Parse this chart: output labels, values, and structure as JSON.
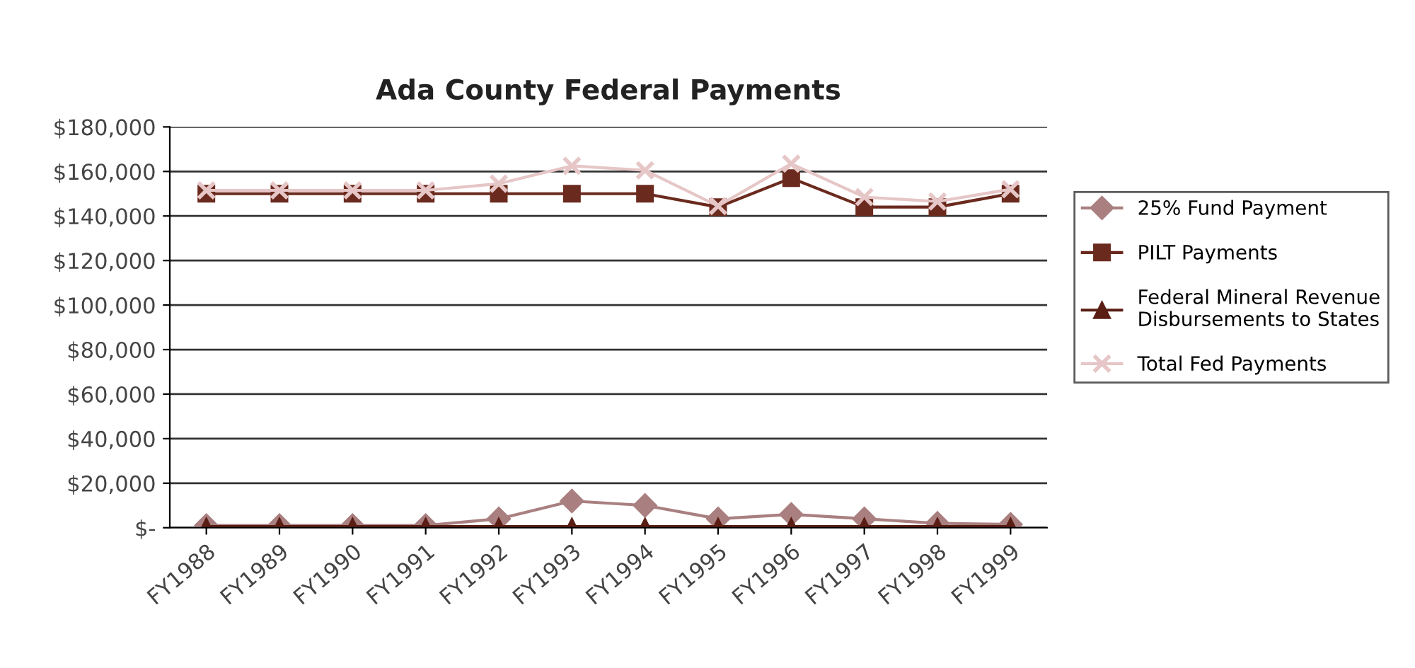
{
  "chart_data": {
    "type": "line",
    "title": "Ada County Federal Payments",
    "categories": [
      "FY1988",
      "FY1989",
      "FY1990",
      "FY1991",
      "FY1992",
      "FY1993",
      "FY1994",
      "FY1995",
      "FY1996",
      "FY1997",
      "FY1998",
      "FY1999"
    ],
    "series": [
      {
        "name": "25% Fund Payment",
        "color": "#a97f80",
        "marker": "diamond",
        "values": [
          1000,
          1000,
          1000,
          1000,
          4000,
          12000,
          10000,
          4000,
          6000,
          4000,
          2000,
          1500
        ]
      },
      {
        "name": "PILT Payments",
        "color": "#6b2a1e",
        "marker": "square",
        "values": [
          150000,
          150000,
          150000,
          150000,
          150000,
          150000,
          150000,
          144000,
          157000,
          144000,
          144000,
          150000
        ]
      },
      {
        "name": "Federal Mineral Revenue\nDisbursements to States",
        "color": "#5a1e14",
        "marker": "triangle",
        "values": [
          500,
          500,
          500,
          500,
          500,
          500,
          500,
          500,
          500,
          500,
          500,
          500
        ]
      },
      {
        "name": "Total Fed Payments",
        "color": "#e6c6c6",
        "marker": "cross",
        "values": [
          151500,
          151500,
          151500,
          151500,
          154500,
          162500,
          160500,
          144500,
          163500,
          148500,
          146500,
          152000
        ]
      }
    ],
    "ylim": [
      0,
      180000
    ],
    "yticks": [
      {
        "value": 0,
        "label": "$-"
      },
      {
        "value": 20000,
        "label": "$20,000"
      },
      {
        "value": 40000,
        "label": "$40,000"
      },
      {
        "value": 60000,
        "label": "$60,000"
      },
      {
        "value": 80000,
        "label": "$80,000"
      },
      {
        "value": 100000,
        "label": "$100,000"
      },
      {
        "value": 120000,
        "label": "$120,000"
      },
      {
        "value": 140000,
        "label": "$140,000"
      },
      {
        "value": 160000,
        "label": "$160,000"
      },
      {
        "value": 180000,
        "label": "$180,000"
      }
    ],
    "grid": "y",
    "legend": "right"
  }
}
